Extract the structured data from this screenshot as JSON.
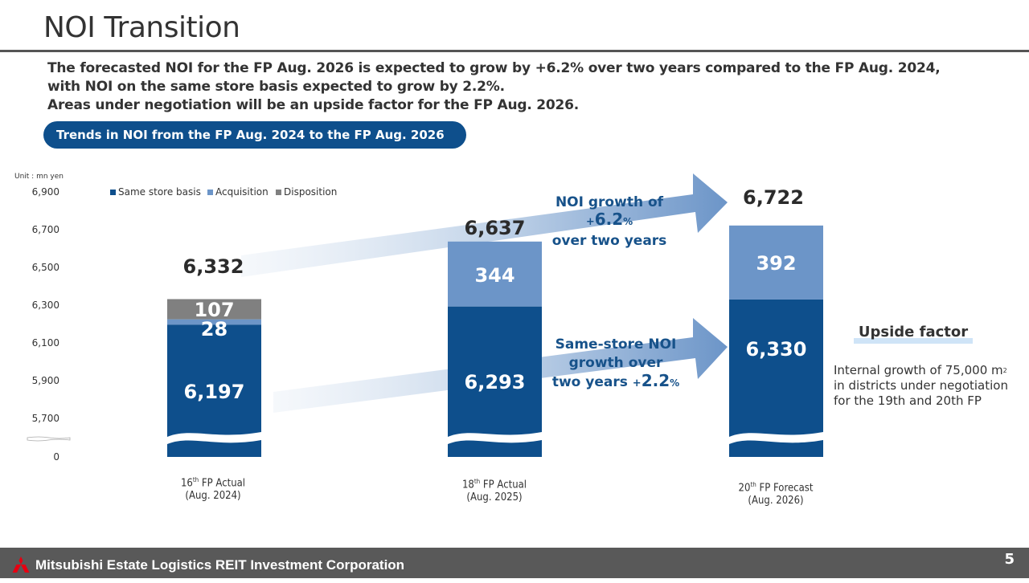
{
  "header": {
    "title": "NOI Transition",
    "lead_lines": [
      "The forecasted NOI for the FP Aug. 2026 is expected to grow by +6.2% over two years compared to the FP Aug. 2024,",
      "with NOI on the same store basis expected to grow by 2.2%.",
      "Areas under negotiation will be an upside factor for the FP Aug. 2026."
    ],
    "section_pill": "Trends in NOI from the FP Aug. 2024  to the FP Aug. 2026"
  },
  "colors": {
    "same_store": "#0e4f8c",
    "acquisition": "#6c95c8",
    "disposition": "#808080",
    "accent_text": "#17528a",
    "footer_bg": "#595959",
    "logo_red": "#e60012"
  },
  "chart_data": {
    "type": "bar",
    "stacked": true,
    "unit_label": "Unit : mn yen",
    "yticks": [
      "6,900",
      "6,700",
      "6,500",
      "6,300",
      "6,100",
      "5,900",
      "5,700",
      "0"
    ],
    "ytick_values": [
      6900,
      6700,
      6500,
      6300,
      6100,
      5900,
      5700,
      0
    ],
    "ylim": [
      5700,
      6900
    ],
    "axis_break": true,
    "legend": [
      {
        "name": "Same store basis",
        "color": "#0e4f8c"
      },
      {
        "name": "Acquisition",
        "color": "#6c95c8"
      },
      {
        "name": "Disposition",
        "color": "#808080"
      }
    ],
    "legend_position": "top-left",
    "categories": [
      {
        "ordinal": "16",
        "suffix": "th",
        "label": " FP Actual",
        "period": "(Aug. 2024)"
      },
      {
        "ordinal": "18",
        "suffix": "th",
        "label": " FP Actual",
        "period": "(Aug. 2025)"
      },
      {
        "ordinal": "20",
        "suffix": "th",
        "label": " FP Forecast",
        "period": "(Aug. 2026)"
      }
    ],
    "series": [
      {
        "name": "Same store basis",
        "values": [
          6197,
          6293,
          6330
        ],
        "labels": [
          "6,197",
          "6,293",
          "6,330"
        ]
      },
      {
        "name": "Acquisition",
        "values": [
          28,
          344,
          392
        ],
        "labels": [
          "28",
          "344",
          "392"
        ]
      },
      {
        "name": "Disposition",
        "values": [
          107,
          0,
          0
        ],
        "labels": [
          "107",
          "",
          ""
        ]
      }
    ],
    "totals": [
      6332,
      6637,
      6722
    ],
    "total_labels": [
      "6,332",
      "6,637",
      "6,722"
    ],
    "annotations": {
      "noi_growth": {
        "line1": "NOI growth of",
        "prefix": "+",
        "value": "6.2",
        "suffix": "%",
        "line3": "over two years"
      },
      "same_store_growth": {
        "line1": "Same-store NOI",
        "line2": "growth over",
        "line3_text": "two years ",
        "prefix": "+",
        "value": "2.2",
        "suffix": "%"
      }
    }
  },
  "upside": {
    "title": "Upside factor",
    "lines": [
      "Internal growth of 75,000 m",
      "in districts under negotiation",
      "for the 19th and 20th FP"
    ],
    "unit_sup": "2"
  },
  "footer": {
    "company": "Mitsubishi Estate Logistics REIT Investment Corporation",
    "page_number": "5"
  }
}
